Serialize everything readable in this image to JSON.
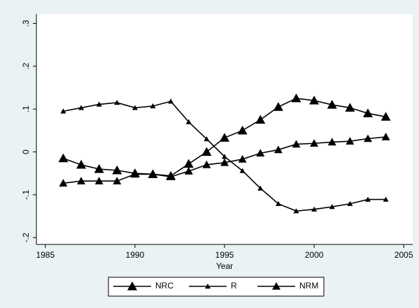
{
  "chart_data": {
    "type": "line",
    "x_label": "Year",
    "x": [
      1986,
      1987,
      1988,
      1989,
      1990,
      1991,
      1992,
      1993,
      1994,
      1995,
      1996,
      1997,
      1998,
      1999,
      2000,
      2001,
      2002,
      2003,
      2004
    ],
    "series": [
      {
        "name": "NRC",
        "color": "#000000",
        "values": [
          -0.015,
          -0.03,
          -0.04,
          -0.043,
          -0.05,
          -0.052,
          -0.056,
          -0.028,
          0.0,
          0.033,
          0.05,
          0.075,
          0.105,
          0.125,
          0.12,
          0.11,
          0.103,
          0.09,
          0.082
        ]
      },
      {
        "name": "R",
        "color": "#000000",
        "values": [
          0.095,
          0.103,
          0.111,
          0.115,
          0.103,
          0.107,
          0.118,
          0.07,
          0.03,
          -0.011,
          -0.044,
          -0.085,
          -0.121,
          -0.138,
          -0.134,
          -0.128,
          -0.121,
          -0.111,
          -0.111
        ]
      },
      {
        "name": "NRM",
        "color": "#000000",
        "values": [
          -0.073,
          -0.068,
          -0.068,
          -0.068,
          -0.052,
          -0.052,
          -0.058,
          -0.045,
          -0.03,
          -0.025,
          -0.017,
          -0.003,
          0.005,
          0.018,
          0.02,
          0.023,
          0.025,
          0.031,
          0.035
        ]
      }
    ],
    "xlim": [
      1984.5,
      2005.5
    ],
    "xticks": [
      1985,
      1990,
      1995,
      2000,
      2005
    ],
    "ylim": [
      -0.216,
      0.322
    ],
    "yticks": [
      {
        "value": -0.2,
        "label": "-.2"
      },
      {
        "value": -0.1,
        "label": "-.1"
      },
      0,
      {
        "value": 0.1,
        "label": ".1"
      },
      {
        "value": 0.2,
        "label": ".2"
      },
      {
        "value": 0.3,
        "label": ".3"
      }
    ],
    "legend": "bottom"
  }
}
